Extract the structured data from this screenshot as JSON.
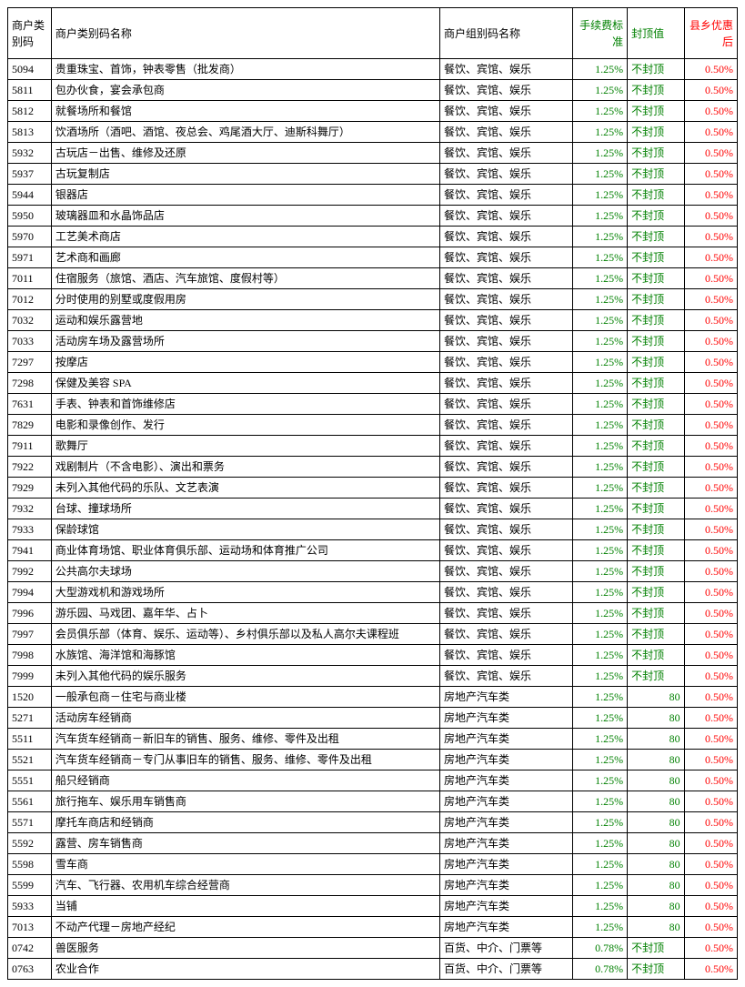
{
  "columns": {
    "code": "商户类别码",
    "name": "商户类别码名称",
    "group": "商户组别码名称",
    "fee": "手续费标准",
    "cap": "封顶值",
    "disc": "县乡优惠后"
  },
  "colors": {
    "green": "#008000",
    "red": "#ff0000",
    "black": "#000000"
  },
  "rows": [
    {
      "code": "5094",
      "name": "贵重珠宝、首饰，钟表零售（批发商）",
      "group": "餐饮、宾馆、娱乐",
      "fee": "1.25%",
      "cap": "不封顶",
      "capType": "text",
      "disc": "0.50%"
    },
    {
      "code": "5811",
      "name": "包办伙食，宴会承包商",
      "group": "餐饮、宾馆、娱乐",
      "fee": "1.25%",
      "cap": "不封顶",
      "capType": "text",
      "disc": "0.50%"
    },
    {
      "code": "5812",
      "name": "就餐场所和餐馆",
      "group": "餐饮、宾馆、娱乐",
      "fee": "1.25%",
      "cap": "不封顶",
      "capType": "text",
      "disc": "0.50%"
    },
    {
      "code": "5813",
      "name": "饮酒场所（酒吧、酒馆、夜总会、鸡尾酒大厅、迪斯科舞厅）",
      "group": "餐饮、宾馆、娱乐",
      "fee": "1.25%",
      "cap": "不封顶",
      "capType": "text",
      "disc": "0.50%"
    },
    {
      "code": "5932",
      "name": "古玩店－出售、维修及还原",
      "group": "餐饮、宾馆、娱乐",
      "fee": "1.25%",
      "cap": "不封顶",
      "capType": "text",
      "disc": "0.50%"
    },
    {
      "code": "5937",
      "name": "古玩复制店",
      "group": "餐饮、宾馆、娱乐",
      "fee": "1.25%",
      "cap": "不封顶",
      "capType": "text",
      "disc": "0.50%"
    },
    {
      "code": "5944",
      "name": "银器店",
      "group": "餐饮、宾馆、娱乐",
      "fee": "1.25%",
      "cap": "不封顶",
      "capType": "text",
      "disc": "0.50%"
    },
    {
      "code": "5950",
      "name": "玻璃器皿和水晶饰品店",
      "group": "餐饮、宾馆、娱乐",
      "fee": "1.25%",
      "cap": "不封顶",
      "capType": "text",
      "disc": "0.50%"
    },
    {
      "code": "5970",
      "name": "工艺美术商店",
      "group": "餐饮、宾馆、娱乐",
      "fee": "1.25%",
      "cap": "不封顶",
      "capType": "text",
      "disc": "0.50%"
    },
    {
      "code": "5971",
      "name": "艺术商和画廊",
      "group": "餐饮、宾馆、娱乐",
      "fee": "1.25%",
      "cap": "不封顶",
      "capType": "text",
      "disc": "0.50%"
    },
    {
      "code": "7011",
      "name": "住宿服务（旅馆、酒店、汽车旅馆、度假村等）",
      "group": "餐饮、宾馆、娱乐",
      "fee": "1.25%",
      "cap": "不封顶",
      "capType": "text",
      "disc": "0.50%"
    },
    {
      "code": "7012",
      "name": "分时使用的别墅或度假用房",
      "group": "餐饮、宾馆、娱乐",
      "fee": "1.25%",
      "cap": "不封顶",
      "capType": "text",
      "disc": "0.50%"
    },
    {
      "code": "7032",
      "name": "运动和娱乐露营地",
      "group": "餐饮、宾馆、娱乐",
      "fee": "1.25%",
      "cap": "不封顶",
      "capType": "text",
      "disc": "0.50%"
    },
    {
      "code": "7033",
      "name": "活动房车场及露营场所",
      "group": "餐饮、宾馆、娱乐",
      "fee": "1.25%",
      "cap": "不封顶",
      "capType": "text",
      "disc": "0.50%"
    },
    {
      "code": "7297",
      "name": "按摩店",
      "group": "餐饮、宾馆、娱乐",
      "fee": "1.25%",
      "cap": "不封顶",
      "capType": "text",
      "disc": "0.50%"
    },
    {
      "code": "7298",
      "name": "保健及美容 SPA",
      "group": "餐饮、宾馆、娱乐",
      "fee": "1.25%",
      "cap": "不封顶",
      "capType": "text",
      "disc": "0.50%"
    },
    {
      "code": "7631",
      "name": "手表、钟表和首饰维修店",
      "group": "餐饮、宾馆、娱乐",
      "fee": "1.25%",
      "cap": "不封顶",
      "capType": "text",
      "disc": "0.50%"
    },
    {
      "code": "7829",
      "name": "电影和录像创作、发行",
      "group": "餐饮、宾馆、娱乐",
      "fee": "1.25%",
      "cap": "不封顶",
      "capType": "text",
      "disc": "0.50%"
    },
    {
      "code": "7911",
      "name": "歌舞厅",
      "group": "餐饮、宾馆、娱乐",
      "fee": "1.25%",
      "cap": "不封顶",
      "capType": "text",
      "disc": "0.50%"
    },
    {
      "code": "7922",
      "name": "戏剧制片（不含电影）、演出和票务",
      "group": "餐饮、宾馆、娱乐",
      "fee": "1.25%",
      "cap": "不封顶",
      "capType": "text",
      "disc": "0.50%"
    },
    {
      "code": "7929",
      "name": "未列入其他代码的乐队、文艺表演",
      "group": "餐饮、宾馆、娱乐",
      "fee": "1.25%",
      "cap": "不封顶",
      "capType": "text",
      "disc": "0.50%"
    },
    {
      "code": "7932",
      "name": "台球、撞球场所",
      "group": "餐饮、宾馆、娱乐",
      "fee": "1.25%",
      "cap": "不封顶",
      "capType": "text",
      "disc": "0.50%"
    },
    {
      "code": "7933",
      "name": "保龄球馆",
      "group": "餐饮、宾馆、娱乐",
      "fee": "1.25%",
      "cap": "不封顶",
      "capType": "text",
      "disc": "0.50%"
    },
    {
      "code": "7941",
      "name": "商业体育场馆、职业体育俱乐部、运动场和体育推广公司",
      "group": "餐饮、宾馆、娱乐",
      "fee": "1.25%",
      "cap": "不封顶",
      "capType": "text",
      "disc": "0.50%"
    },
    {
      "code": "7992",
      "name": "公共高尔夫球场",
      "group": "餐饮、宾馆、娱乐",
      "fee": "1.25%",
      "cap": "不封顶",
      "capType": "text",
      "disc": "0.50%"
    },
    {
      "code": "7994",
      "name": "大型游戏机和游戏场所",
      "group": "餐饮、宾馆、娱乐",
      "fee": "1.25%",
      "cap": "不封顶",
      "capType": "text",
      "disc": "0.50%"
    },
    {
      "code": "7996",
      "name": "游乐园、马戏团、嘉年华、占卜",
      "group": "餐饮、宾馆、娱乐",
      "fee": "1.25%",
      "cap": "不封顶",
      "capType": "text",
      "disc": "0.50%"
    },
    {
      "code": "7997",
      "name": "会员俱乐部（体育、娱乐、运动等）、乡村俱乐部以及私人高尔夫课程班",
      "group": "餐饮、宾馆、娱乐",
      "fee": "1.25%",
      "cap": "不封顶",
      "capType": "text",
      "disc": "0.50%"
    },
    {
      "code": "7998",
      "name": "水族馆、海洋馆和海豚馆",
      "group": "餐饮、宾馆、娱乐",
      "fee": "1.25%",
      "cap": "不封顶",
      "capType": "text",
      "disc": "0.50%"
    },
    {
      "code": "7999",
      "name": "未列入其他代码的娱乐服务",
      "group": "餐饮、宾馆、娱乐",
      "fee": "1.25%",
      "cap": "不封顶",
      "capType": "text",
      "disc": "0.50%"
    },
    {
      "code": "1520",
      "name": "一般承包商－住宅与商业楼",
      "group": "房地产汽车类",
      "fee": "1.25%",
      "cap": "80",
      "capType": "num",
      "disc": "0.50%"
    },
    {
      "code": "5271",
      "name": "活动房车经销商",
      "group": "房地产汽车类",
      "fee": "1.25%",
      "cap": "80",
      "capType": "num",
      "disc": "0.50%"
    },
    {
      "code": "5511",
      "name": "汽车货车经销商－新旧车的销售、服务、维修、零件及出租",
      "group": "房地产汽车类",
      "fee": "1.25%",
      "cap": "80",
      "capType": "num",
      "disc": "0.50%"
    },
    {
      "code": "5521",
      "name": "汽车货车经销商－专门从事旧车的销售、服务、维修、零件及出租",
      "group": "房地产汽车类",
      "fee": "1.25%",
      "cap": "80",
      "capType": "num",
      "disc": "0.50%"
    },
    {
      "code": "5551",
      "name": "船只经销商",
      "group": "房地产汽车类",
      "fee": "1.25%",
      "cap": "80",
      "capType": "num",
      "disc": "0.50%"
    },
    {
      "code": "5561",
      "name": "旅行拖车、娱乐用车销售商",
      "group": "房地产汽车类",
      "fee": "1.25%",
      "cap": "80",
      "capType": "num",
      "disc": "0.50%"
    },
    {
      "code": "5571",
      "name": "摩托车商店和经销商",
      "group": "房地产汽车类",
      "fee": "1.25%",
      "cap": "80",
      "capType": "num",
      "disc": "0.50%"
    },
    {
      "code": "5592",
      "name": "露营、房车销售商",
      "group": "房地产汽车类",
      "fee": "1.25%",
      "cap": "80",
      "capType": "num",
      "disc": "0.50%"
    },
    {
      "code": "5598",
      "name": "雪车商",
      "group": "房地产汽车类",
      "fee": "1.25%",
      "cap": "80",
      "capType": "num",
      "disc": "0.50%"
    },
    {
      "code": "5599",
      "name": "汽车、飞行器、农用机车综合经营商",
      "group": "房地产汽车类",
      "fee": "1.25%",
      "cap": "80",
      "capType": "num",
      "disc": "0.50%"
    },
    {
      "code": "5933",
      "name": "当铺",
      "group": "房地产汽车类",
      "fee": "1.25%",
      "cap": "80",
      "capType": "num",
      "disc": "0.50%"
    },
    {
      "code": "7013",
      "name": "不动产代理－房地产经纪",
      "group": "房地产汽车类",
      "fee": "1.25%",
      "cap": "80",
      "capType": "num",
      "disc": "0.50%"
    },
    {
      "code": "0742",
      "name": "兽医服务",
      "group": "百货、中介、门票等",
      "fee": "0.78%",
      "cap": "不封顶",
      "capType": "text",
      "disc": "0.50%"
    },
    {
      "code": "0763",
      "name": "农业合作",
      "group": "百货、中介、门票等",
      "fee": "0.78%",
      "cap": "不封顶",
      "capType": "text",
      "disc": "0.50%"
    }
  ]
}
